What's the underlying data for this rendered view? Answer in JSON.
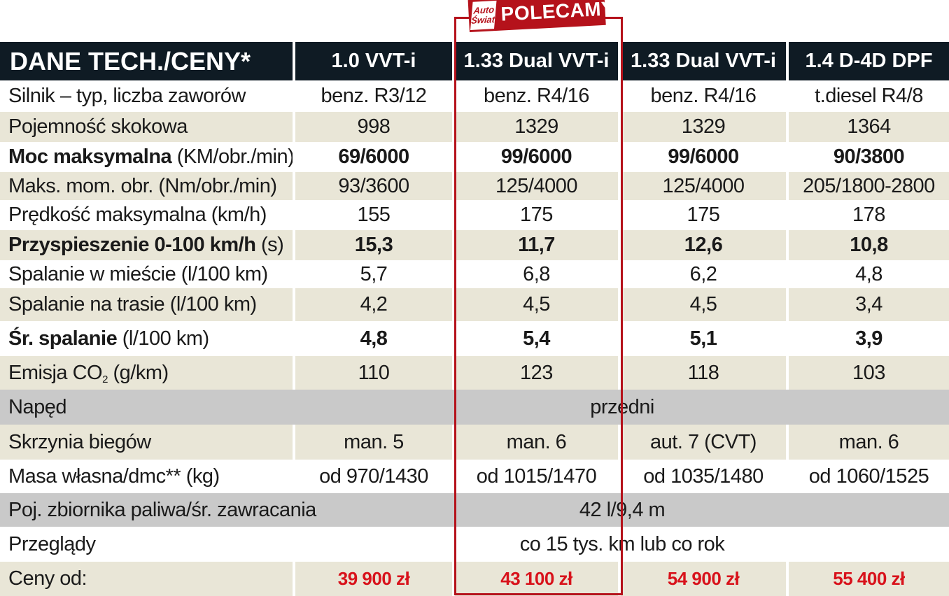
{
  "badge": {
    "logo_line1": "Auto",
    "logo_line2": "Świat",
    "label": "POLECAMY"
  },
  "header": {
    "title": "DANE TECH./CENY*",
    "columns": [
      "1.0 VVT-i",
      "1.33 Dual VVT-i",
      "1.33 Dual VVT-i",
      "1.4 D-4D DPF"
    ]
  },
  "rows": [
    {
      "label": "Silnik – typ, liczba zaworów",
      "values": [
        "benz. R3/12",
        "benz. R4/16",
        "benz. R4/16",
        "t.diesel R4/8"
      ]
    },
    {
      "label": "Pojemność skokowa",
      "values": [
        "998",
        "1329",
        "1329",
        "1364"
      ]
    },
    {
      "label_bold": "Moc maksymalna",
      "label_rest": " (KM/obr./min)",
      "values": [
        "69/6000",
        "99/6000",
        "99/6000",
        "90/3800"
      ]
    },
    {
      "label": "Maks. mom. obr. (Nm/obr./min)",
      "values": [
        "93/3600",
        "125/4000",
        "125/4000",
        "205/1800-2800"
      ]
    },
    {
      "label": "Prędkość maksymalna (km/h)",
      "values": [
        "155",
        "175",
        "175",
        "178"
      ]
    },
    {
      "label_bold": "Przyspieszenie 0-100 km/h",
      "label_rest": " (s)",
      "values": [
        "15,3",
        "11,7",
        "12,6",
        "10,8"
      ]
    },
    {
      "label": "Spalanie w mieście (l/100 km)",
      "values": [
        "5,7",
        "6,8",
        "6,2",
        "4,8"
      ]
    },
    {
      "label": "Spalanie na trasie (l/100 km)",
      "values": [
        "4,2",
        "4,5",
        "4,5",
        "3,4"
      ]
    },
    {
      "label_bold": "Śr. spalanie",
      "label_rest": " (l/100 km)",
      "values": [
        "4,8",
        "5,4",
        "5,1",
        "3,9"
      ]
    },
    {
      "label_pre": "Emisja CO",
      "label_sub": "2",
      "label_post": " (g/km)",
      "values": [
        "110",
        "123",
        "118",
        "103"
      ]
    },
    {
      "label": "Napęd",
      "span_value": "przedni"
    },
    {
      "label": "Skrzynia biegów",
      "values": [
        "man. 5",
        "man. 6",
        "aut. 7 (CVT)",
        "man. 6"
      ]
    },
    {
      "label": "Masa własna/dmc** (kg)",
      "values": [
        "od 970/1430",
        "od 1015/1470",
        "od 1035/1480",
        "od 1060/1525"
      ]
    },
    {
      "label": "Poj. zbiornika paliwa/śr. zawracania",
      "span_value": "42 l/9,4 m"
    },
    {
      "label": "Przeglądy",
      "span_value": "co 15 tys. km lub co rok"
    },
    {
      "label": "Ceny od:",
      "values": [
        "39 900 zł",
        "43 100 zł",
        "54 900 zł",
        "55 400 zł"
      ]
    }
  ],
  "colors": {
    "header_bg": "#0f1b24",
    "beige_row": "#e9e6d7",
    "gray_row": "#c9c9c9",
    "price_red": "#d8121b",
    "highlight_red": "#b5121b"
  }
}
